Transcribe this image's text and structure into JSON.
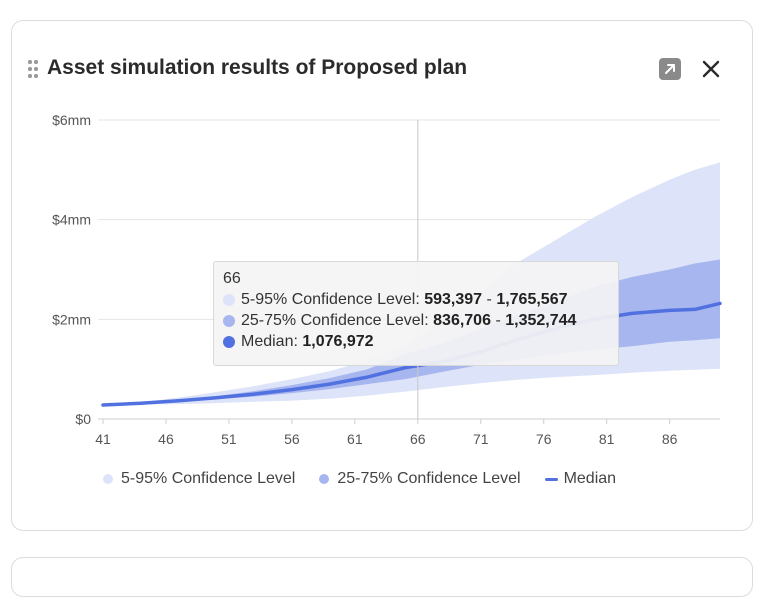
{
  "panel": {
    "title": "Asset simulation results of Proposed plan"
  },
  "icons": {
    "drag": "drag-handle-icon",
    "expand": "expand-arrow-icon",
    "close": "close-icon"
  },
  "colors": {
    "band_outer": "#dde3f8",
    "band_inner": "#a7b6ef",
    "median": "#5271e0",
    "grid": "#e4e4e4",
    "hover_line": "#c8c8c8"
  },
  "tooltip": {
    "x": "66",
    "rows": [
      {
        "label": "5-95% Confidence Level: ",
        "low": "593,397",
        "sep": " - ",
        "high": "1,765,567",
        "color": "#dde3f8"
      },
      {
        "label": "25-75% Confidence Level: ",
        "low": "836,706",
        "sep": " - ",
        "high": "1,352,744",
        "color": "#a7b6ef"
      },
      {
        "label": "Median: ",
        "value": "1,076,972",
        "color": "#5271e0"
      }
    ]
  },
  "legend": [
    {
      "label": "5-95% Confidence Level",
      "kind": "dot",
      "color": "#dde3f8"
    },
    {
      "label": "25-75% Confidence Level",
      "kind": "dot",
      "color": "#a7b6ef"
    },
    {
      "label": "Median",
      "kind": "line",
      "color": "#5271e0"
    }
  ],
  "chart_data": {
    "type": "area",
    "title": "Asset simulation results of Proposed plan",
    "xlabel": "",
    "ylabel": "",
    "x_ticks": [
      41,
      46,
      51,
      56,
      61,
      66,
      71,
      76,
      81,
      86
    ],
    "y_ticks": [
      {
        "value": 0,
        "label": "$0"
      },
      {
        "value": 2000000,
        "label": "$2mm"
      },
      {
        "value": 4000000,
        "label": "$4mm"
      },
      {
        "value": 6000000,
        "label": "$6mm"
      }
    ],
    "xlim": [
      41,
      90
    ],
    "ylim": [
      0,
      6000000
    ],
    "grid": true,
    "legend_position": "bottom",
    "hover_x": 66,
    "x": [
      41,
      44,
      47,
      50,
      53,
      56,
      59,
      62,
      65,
      68,
      71,
      74,
      77,
      80,
      83,
      86,
      88,
      90
    ],
    "series": [
      {
        "name": "5-95% Confidence Level",
        "kind": "band",
        "low": [
          280000,
          290000,
          300000,
          320000,
          345000,
          370000,
          410000,
          470000,
          550000,
          640000,
          720000,
          790000,
          840000,
          880000,
          930000,
          970000,
          990000,
          1010000
        ],
        "high": [
          280000,
          340000,
          430000,
          540000,
          660000,
          800000,
          960000,
          1180000,
          1450000,
          2000000,
          2550000,
          3150000,
          3600000,
          4050000,
          4450000,
          4800000,
          5000000,
          5150000
        ]
      },
      {
        "name": "25-75% Confidence Level",
        "kind": "band",
        "low": [
          280000,
          305000,
          345000,
          395000,
          450000,
          520000,
          600000,
          700000,
          800000,
          950000,
          1090000,
          1200000,
          1300000,
          1390000,
          1460000,
          1550000,
          1580000,
          1620000
        ],
        "high": [
          280000,
          325000,
          385000,
          460000,
          560000,
          680000,
          820000,
          1000000,
          1300000,
          1530000,
          1800000,
          2100000,
          2350000,
          2650000,
          2850000,
          3000000,
          3120000,
          3200000
        ]
      },
      {
        "name": "Median",
        "kind": "line",
        "values": [
          280000,
          315000,
          365000,
          425000,
          500000,
          590000,
          700000,
          840000,
          1030000,
          1150000,
          1350000,
          1600000,
          1820000,
          2000000,
          2120000,
          2180000,
          2200000,
          2320000
        ]
      }
    ]
  }
}
